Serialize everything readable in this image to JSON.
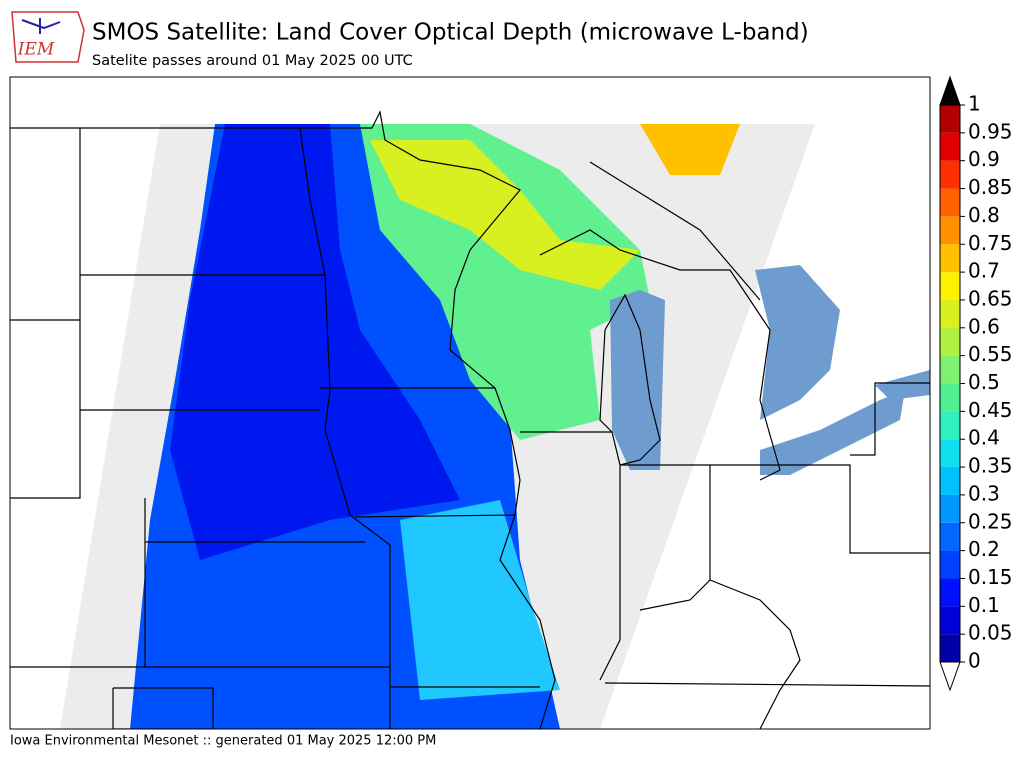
{
  "header": {
    "logo_text": "IEM",
    "title": "SMOS Satellite: Land Cover Optical Depth (microwave L-band)",
    "subtitle": "Satelite passes around 01 May 2025 00 UTC"
  },
  "colorbar": {
    "ticks": [
      0,
      0.05,
      0.1,
      0.15,
      0.2,
      0.25,
      0.3,
      0.35,
      0.4,
      0.45,
      0.5,
      0.55,
      0.6,
      0.65,
      0.7,
      0.75,
      0.8,
      0.85,
      0.9,
      0.95,
      1
    ],
    "colors": [
      "#0000a8",
      "#0000d8",
      "#0010ff",
      "#0040ff",
      "#0068ff",
      "#0098ff",
      "#00c0ff",
      "#10e0f0",
      "#30f0c0",
      "#50f090",
      "#80f070",
      "#b0f040",
      "#d8f020",
      "#fff000",
      "#ffc000",
      "#ff9000",
      "#ff6000",
      "#ff3000",
      "#e00000",
      "#b00000"
    ],
    "over_color": "#000000",
    "under_color": "#ffffff"
  },
  "footer": "Iowa Environmental Mesonet :: generated 01 May 2025 12:00 PM"
}
